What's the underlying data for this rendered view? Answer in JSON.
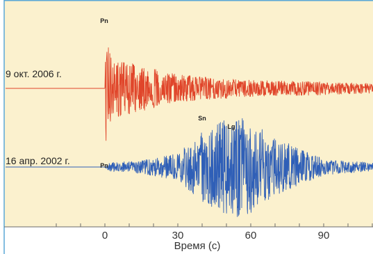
{
  "chart_data": {
    "type": "line",
    "title": "",
    "xlabel": "Время (с)",
    "ylabel": "",
    "xlim": [
      -25,
      110
    ],
    "x_ticks": [
      0,
      30,
      60,
      90
    ],
    "grid": false,
    "series": [
      {
        "label": "9 окт. 2006 г.",
        "color": "#e0452a",
        "onset": 0,
        "peak_amplitude": 1.0,
        "envelope": [
          {
            "t": -25,
            "a": 0.005
          },
          {
            "t": 0,
            "a": 0.005
          },
          {
            "t": 0.5,
            "a": 1.0
          },
          {
            "t": 3,
            "a": 0.55
          },
          {
            "t": 12,
            "a": 0.45
          },
          {
            "t": 30,
            "a": 0.25
          },
          {
            "t": 60,
            "a": 0.15
          },
          {
            "t": 90,
            "a": 0.12
          },
          {
            "t": 110,
            "a": 0.09
          }
        ],
        "phases": [
          {
            "name": "Pn",
            "t": 0
          }
        ]
      },
      {
        "label": "16 апр. 2002 г.",
        "color": "#2f5fb7",
        "onset": 0,
        "peak_amplitude": 1.0,
        "envelope": [
          {
            "t": -25,
            "a": 0.005
          },
          {
            "t": 0,
            "a": 0.01
          },
          {
            "t": 2,
            "a": 0.08
          },
          {
            "t": 15,
            "a": 0.12
          },
          {
            "t": 30,
            "a": 0.25
          },
          {
            "t": 40,
            "a": 0.65
          },
          {
            "t": 55,
            "a": 1.0
          },
          {
            "t": 70,
            "a": 0.55
          },
          {
            "t": 90,
            "a": 0.15
          },
          {
            "t": 110,
            "a": 0.08
          }
        ],
        "phases": [
          {
            "name": "Pn",
            "t": 0
          },
          {
            "name": "Sn",
            "t": 40
          },
          {
            "name": "Lg",
            "t": 52
          }
        ]
      }
    ]
  }
}
